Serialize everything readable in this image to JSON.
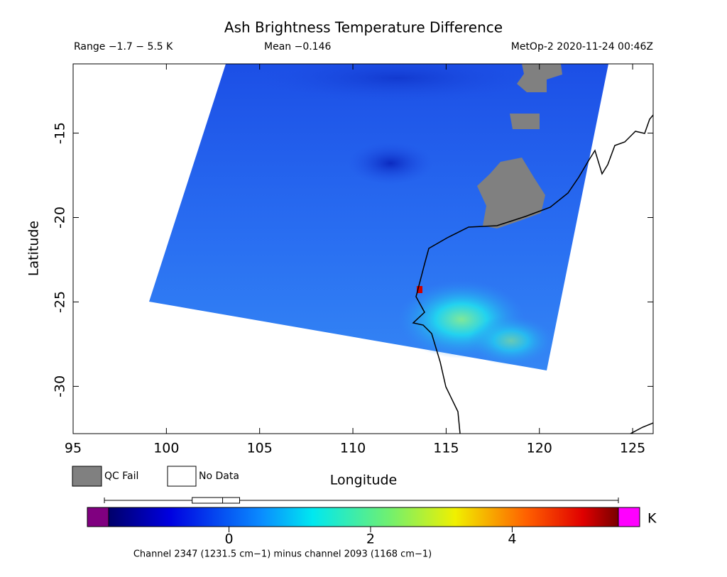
{
  "chart_data": {
    "type": "map",
    "title": "Ash Brightness Temperature Difference",
    "range_text": "Range −1.7 − 5.5 K",
    "mean_text": "Mean −0.146",
    "source_text": "MetOp-2 2020-11-24 00:46Z",
    "xlabel": "Longitude",
    "ylabel": "Latitude",
    "xlim": [
      95,
      126.1
    ],
    "xticks": [
      95,
      100,
      105,
      110,
      115,
      120,
      125
    ],
    "ylim": [
      -32.8,
      -10.9
    ],
    "yticks": [
      -15,
      -20,
      -25,
      -30
    ],
    "legend": [
      "QC Fail",
      "No Data"
    ],
    "colorbar": {
      "lim": [
        -1.7,
        5.5
      ],
      "ticks": [
        0,
        2,
        4
      ],
      "unit": "K",
      "boxplot": {
        "whisker_low": -1.76,
        "q1": -0.52,
        "median": -0.09,
        "q3": 0.15,
        "whisker_high": 5.5
      }
    },
    "footnote": "Channel 2347 (1231.5 cm−1) minus channel 2093 (1168 cm−1)"
  }
}
